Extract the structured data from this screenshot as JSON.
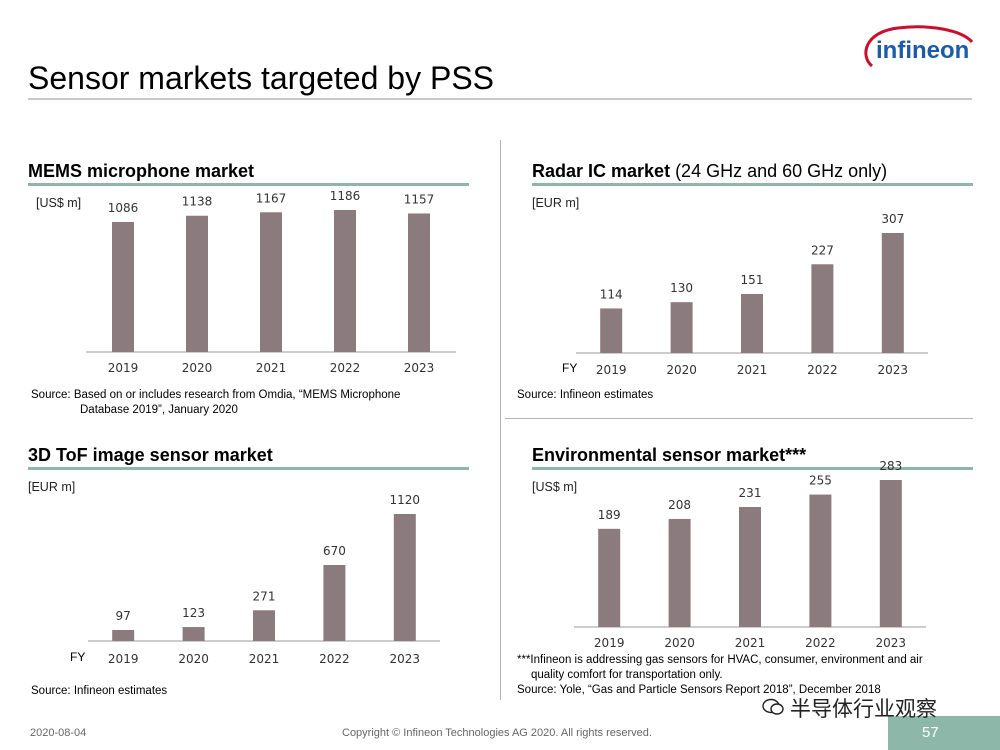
{
  "slide": {
    "title": "Sensor markets targeted by PSS",
    "logo_text": "infineon",
    "footer_date": "2020-08-04",
    "footer_copyright": "Copyright © Infineon Technologies AG 2020. All rights reserved.",
    "page_number": "57",
    "watermark_text": "半导体行业观察"
  },
  "colors": {
    "bar": "#8c7b7e",
    "accent": "#8db7a8",
    "logo_red": "#c8102e",
    "logo_blue": "#1d5aa8"
  },
  "panels": {
    "mems": {
      "title": "MEMS microphone market",
      "unit": "[US$ m]",
      "source_line1": "Source: Based on or includes research from Omdia, “MEMS Microphone",
      "source_line2": "Database 2019”, January 2020"
    },
    "radar": {
      "title": "Radar IC market",
      "title_sub": " (24 GHz and 60 GHz only)",
      "unit": "[EUR m]",
      "source_line1": "Source: Infineon estimates"
    },
    "tof": {
      "title": "3D ToF image sensor market",
      "unit": "[EUR m]",
      "source_line1": "Source: Infineon estimates"
    },
    "env": {
      "title": "Environmental sensor market***",
      "unit": "[US$ m]",
      "note_line1": "***Infineon is addressing gas sensors for HVAC, consumer, environment and air",
      "note_line2": "quality comfort for transportation only.",
      "source_line1": "Source: Yole, “Gas and Particle Sensors Report 2018”, December 2018"
    }
  },
  "chart_data": [
    {
      "id": "mems",
      "type": "bar",
      "title": "MEMS microphone market",
      "ylabel": "[US$ m]",
      "categories": [
        "2019",
        "2020",
        "2021",
        "2022",
        "2023"
      ],
      "values": [
        1086,
        1138,
        1167,
        1186,
        1157
      ],
      "ylim": [
        0,
        1300
      ],
      "fy_label": ""
    },
    {
      "id": "radar",
      "type": "bar",
      "title": "Radar IC market (24 GHz and 60 GHz only)",
      "ylabel": "[EUR m]",
      "categories": [
        "2019",
        "2020",
        "2021",
        "2022",
        "2023"
      ],
      "values": [
        114,
        130,
        151,
        227,
        307
      ],
      "ylim": [
        0,
        320
      ],
      "fy_label": "FY"
    },
    {
      "id": "tof",
      "type": "bar",
      "title": "3D ToF image sensor market",
      "ylabel": "[EUR m]",
      "categories": [
        "2019",
        "2020",
        "2021",
        "2022",
        "2023"
      ],
      "values": [
        97,
        123,
        271,
        670,
        1120
      ],
      "ylim": [
        0,
        1200
      ],
      "fy_label": "FY"
    },
    {
      "id": "env",
      "type": "bar",
      "title": "Environmental sensor market***",
      "ylabel": "[US$ m]",
      "categories": [
        "2019",
        "2020",
        "2021",
        "2022",
        "2023"
      ],
      "values": [
        189,
        208,
        231,
        255,
        283
      ],
      "ylim": [
        0,
        320
      ],
      "fy_label": ""
    }
  ]
}
